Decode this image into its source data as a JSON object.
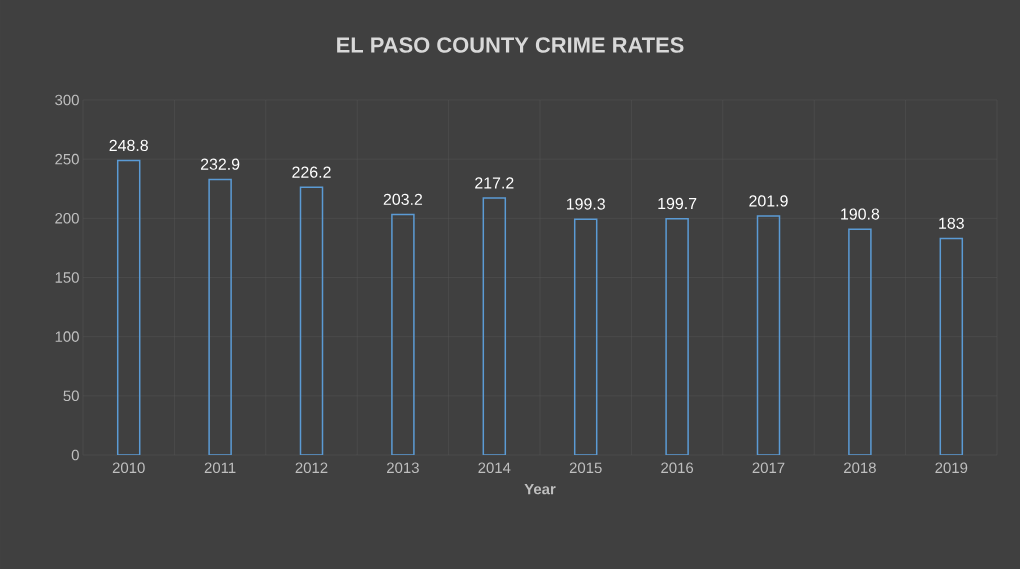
{
  "chart_data": {
    "type": "bar",
    "title": "EL PASO COUNTY CRIME RATES",
    "xlabel": "Year",
    "categories": [
      "2010",
      "2011",
      "2012",
      "2013",
      "2014",
      "2015",
      "2016",
      "2017",
      "2018",
      "2019"
    ],
    "values": [
      248.8,
      232.9,
      226.2,
      203.2,
      217.2,
      199.3,
      199.7,
      201.9,
      190.8,
      183
    ],
    "color": "#5b9bd5",
    "ylim": [
      0,
      300
    ],
    "yticks": [
      0,
      50,
      100,
      150,
      200,
      250,
      300
    ],
    "grid": true,
    "data_labels": true
  }
}
